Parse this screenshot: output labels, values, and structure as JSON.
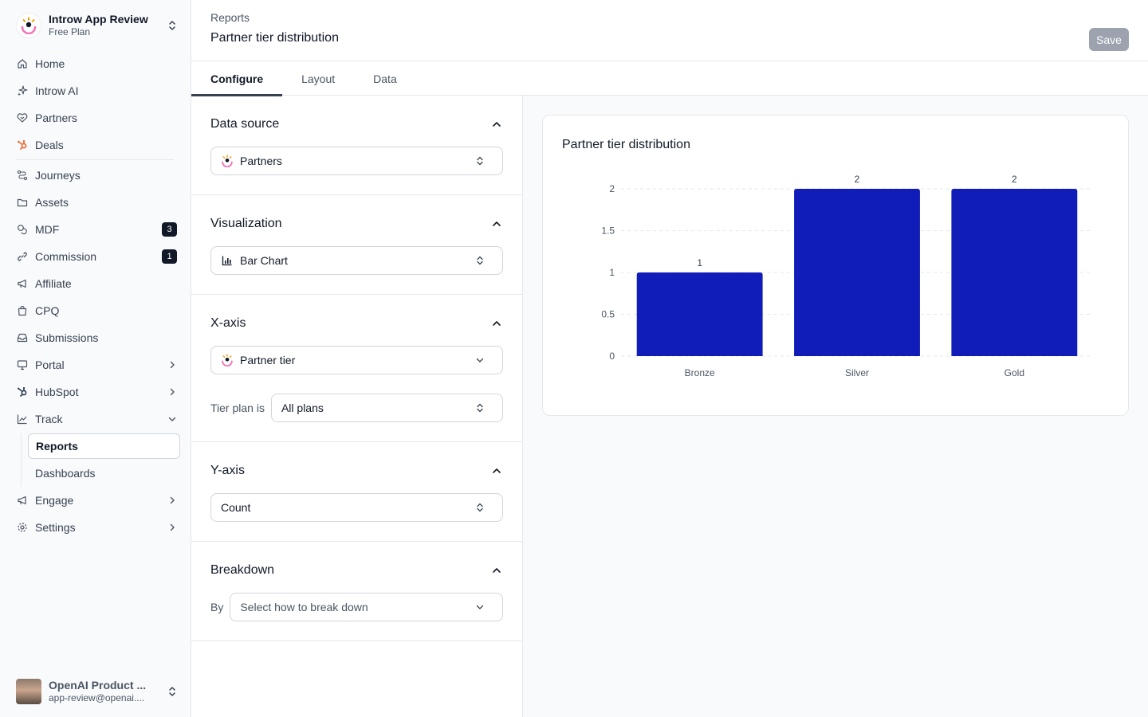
{
  "org": {
    "name": "Introw App Review",
    "plan": "Free Plan"
  },
  "nav": {
    "home": "Home",
    "ai": "Introw AI",
    "partners": "Partners",
    "deals": "Deals",
    "journeys": "Journeys",
    "assets": "Assets",
    "mdf": "MDF",
    "mdf_badge": "3",
    "commission": "Commission",
    "commission_badge": "1",
    "affiliate": "Affiliate",
    "cpq": "CPQ",
    "submissions": "Submissions",
    "portal": "Portal",
    "hubspot": "HubSpot",
    "track": "Track",
    "reports": "Reports",
    "dashboards": "Dashboards",
    "engage": "Engage",
    "settings": "Settings"
  },
  "user": {
    "name": "OpenAI Product ...",
    "email": "app-review@openai...."
  },
  "header": {
    "breadcrumb": "Reports",
    "title": "Partner tier distribution",
    "save_label": "Save"
  },
  "tabs": [
    "Configure",
    "Layout",
    "Data"
  ],
  "config": {
    "data_source": {
      "title": "Data source",
      "value": "Partners"
    },
    "visualization": {
      "title": "Visualization",
      "value": "Bar Chart"
    },
    "x_axis": {
      "title": "X-axis",
      "value": "Partner tier",
      "filter_label": "Tier plan is",
      "filter_value": "All plans"
    },
    "y_axis": {
      "title": "Y-axis",
      "value": "Count"
    },
    "breakdown": {
      "title": "Breakdown",
      "by_label": "By",
      "placeholder": "Select how to break down"
    }
  },
  "colors": {
    "bar": "#111db8",
    "accent": "#374151"
  },
  "chart_data": {
    "type": "bar",
    "title": "Partner tier distribution",
    "categories": [
      "Bronze",
      "Silver",
      "Gold"
    ],
    "values": [
      1,
      2,
      2
    ],
    "data_labels": [
      "1",
      "2",
      "2"
    ],
    "y_ticks": [
      "0",
      "0.5",
      "1",
      "1.5",
      "2"
    ],
    "ylim": [
      0,
      2
    ],
    "grid": true,
    "legend": "none"
  }
}
